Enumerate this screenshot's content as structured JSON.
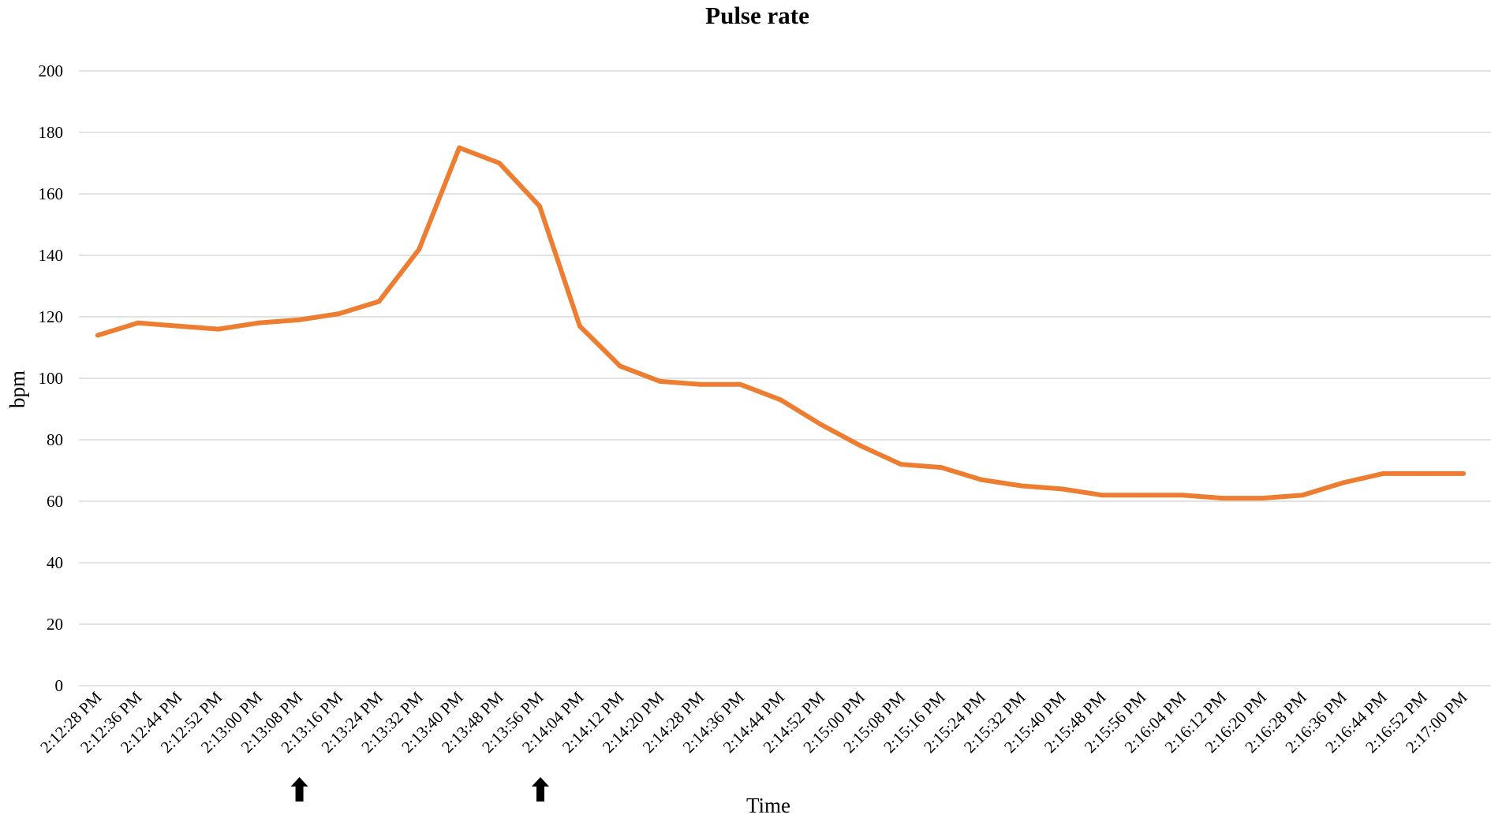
{
  "chart_data": {
    "type": "line",
    "title": "Pulse rate",
    "xlabel": "Time",
    "ylabel": "bpm",
    "ylim": [
      0,
      200
    ],
    "y_ticks": [
      0,
      20,
      40,
      60,
      80,
      100,
      120,
      140,
      160,
      180,
      200
    ],
    "grid": true,
    "categories": [
      "2:12:28 PM",
      "2:12:36 PM",
      "2:12:44 PM",
      "2:12:52 PM",
      "2:13:00 PM",
      "2:13:08 PM",
      "2:13:16 PM",
      "2:13:24 PM",
      "2:13:32 PM",
      "2:13:40 PM",
      "2:13:48 PM",
      "2:13:56 PM",
      "2:14:04 PM",
      "2:14:12 PM",
      "2:14:20 PM",
      "2:14:28 PM",
      "2:14:36 PM",
      "2:14:44 PM",
      "2:14:52 PM",
      "2:15:00 PM",
      "2:15:08 PM",
      "2:15:16 PM",
      "2:15:24 PM",
      "2:15:32 PM",
      "2:15:40 PM",
      "2:15:48 PM",
      "2:15:56 PM",
      "2:16:04 PM",
      "2:16:12 PM",
      "2:16:20 PM",
      "2:16:28 PM",
      "2:16:36 PM",
      "2:16:44 PM",
      "2:16:52 PM",
      "2:17:00 PM"
    ],
    "series": [
      {
        "color": "#ed7d31",
        "values": [
          114,
          118,
          117,
          116,
          118,
          119,
          121,
          125,
          142,
          175,
          170,
          156,
          117,
          104,
          99,
          98,
          98,
          93,
          85,
          78,
          72,
          71,
          67,
          65,
          64,
          62,
          62,
          62,
          61,
          61,
          62,
          66,
          69,
          69,
          69
        ]
      }
    ],
    "annotations": [
      {
        "type": "arrow",
        "at": "2:13:08 PM",
        "icon": "up-arrow-icon",
        "color": "#000000"
      },
      {
        "type": "arrow",
        "at": "2:13:56 PM",
        "icon": "up-arrow-icon",
        "color": "#000000"
      }
    ]
  }
}
